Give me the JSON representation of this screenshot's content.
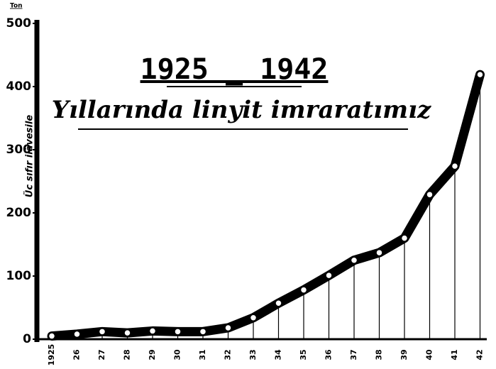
{
  "chart_data": {
    "type": "line",
    "title": "1925 _ 1942",
    "subtitle": "Yıllarında linyit imraratımız",
    "y_unit": "Ton",
    "y_label": "Üc sıfır ilâvesile",
    "categories": [
      "1925",
      "26",
      "27",
      "28",
      "29",
      "30",
      "31",
      "32",
      "33",
      "34",
      "35",
      "36",
      "37",
      "38",
      "39",
      "40",
      "41",
      "42"
    ],
    "series": [
      {
        "color": "#000000",
        "values": [
          5,
          8,
          12,
          10,
          13,
          12,
          12,
          18,
          34,
          57,
          78,
          101,
          125,
          137,
          160,
          229,
          274,
          419
        ]
      }
    ],
    "ylim": [
      0,
      500
    ],
    "yticks": [
      0,
      100,
      200,
      300,
      400,
      500
    ]
  }
}
